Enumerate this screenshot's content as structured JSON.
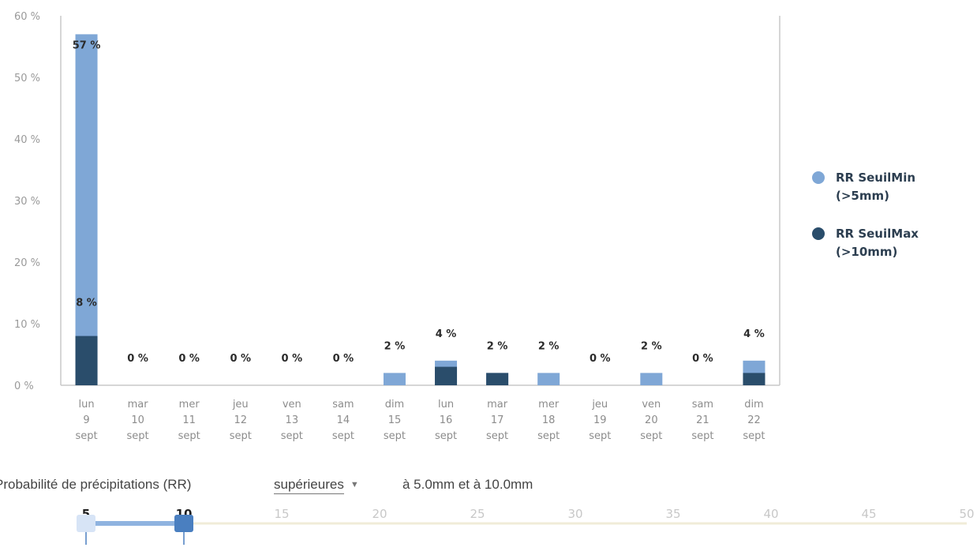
{
  "chart_data": {
    "type": "bar",
    "categories": [
      [
        "lun",
        "9",
        "sept"
      ],
      [
        "mar",
        "10",
        "sept"
      ],
      [
        "mer",
        "11",
        "sept"
      ],
      [
        "jeu",
        "12",
        "sept"
      ],
      [
        "ven",
        "13",
        "sept"
      ],
      [
        "sam",
        "14",
        "sept"
      ],
      [
        "dim",
        "15",
        "sept"
      ],
      [
        "lun",
        "16",
        "sept"
      ],
      [
        "mar",
        "17",
        "sept"
      ],
      [
        "mer",
        "18",
        "sept"
      ],
      [
        "jeu",
        "19",
        "sept"
      ],
      [
        "ven",
        "20",
        "sept"
      ],
      [
        "sam",
        "21",
        "sept"
      ],
      [
        "dim",
        "22",
        "sept"
      ]
    ],
    "series": [
      {
        "name": "RR SeuilMin (>5mm)",
        "legend_lines": [
          "RR SeuilMin",
          "(>5mm)"
        ],
        "color": "#7fa7d6",
        "values": [
          57,
          0,
          0,
          0,
          0,
          0,
          2,
          4,
          2,
          2,
          0,
          2,
          0,
          4
        ]
      },
      {
        "name": "RR SeuilMax (>10mm)",
        "legend_lines": [
          "RR SeuilMax",
          "(>10mm)"
        ],
        "color": "#2a4d6b",
        "values": [
          8,
          0,
          0,
          0,
          0,
          0,
          0,
          3,
          2,
          0,
          0,
          0,
          0,
          2
        ]
      }
    ],
    "data_labels": [
      "57 %",
      "0 %",
      "0 %",
      "0 %",
      "0 %",
      "0 %",
      "2 %",
      "4 %",
      "2 %",
      "2 %",
      "0 %",
      "2 %",
      "0 %",
      "4 %"
    ],
    "secondary_label": "8 %",
    "yticks": [
      "0 %",
      "10 %",
      "20 %",
      "30 %",
      "40 %",
      "50 %",
      "60 %"
    ],
    "ylim": [
      0,
      60
    ],
    "grid": false,
    "legend_position": "right"
  },
  "controls": {
    "prefix": "Probabilité de précipitations (RR)",
    "select_value": "supérieures",
    "suffix": "à 5.0mm et à 10.0mm"
  },
  "slider": {
    "ticks": [
      "5",
      "10",
      "15",
      "20",
      "25",
      "30",
      "35",
      "40",
      "45",
      "50"
    ],
    "min": 5,
    "max": 50,
    "low_value": 5,
    "high_value": 10,
    "range_color": "#8fb3e0",
    "handle_color": "#4a7fc0"
  }
}
